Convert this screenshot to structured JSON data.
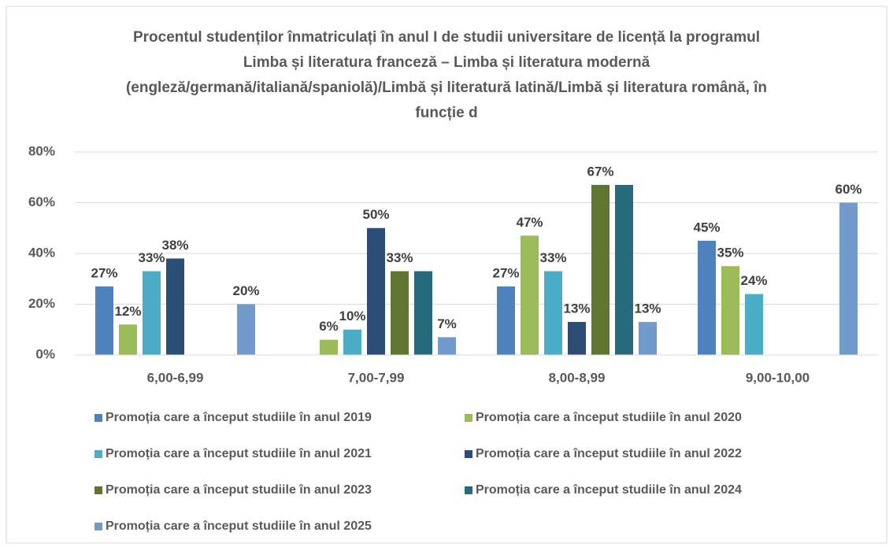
{
  "chart_data": {
    "type": "bar",
    "title": "Procentul studenților înmatriculați în anul I de studii universitare de licență la programul Limba și literatura franceză – Limba și literatura modernă (engleză/germană/italiană/spaniolă)/Limbă și literatură latină/Limbă și literatura română, în funcție d",
    "categories": [
      "6,00-6,99",
      "7,00-7,99",
      "8,00-8,99",
      "9,00-10,00"
    ],
    "series": [
      {
        "name": "Promoția care a început studiile în anul 2019",
        "color": "#4f81bd",
        "values": [
          27,
          null,
          27,
          45
        ],
        "value_labels": [
          "27%",
          null,
          "27%",
          "45%"
        ]
      },
      {
        "name": "Promoția care a început studiile în anul 2020",
        "color": "#9bbb59",
        "values": [
          12,
          6,
          47,
          35
        ],
        "value_labels": [
          "12%",
          "6%",
          "47%",
          "35%"
        ]
      },
      {
        "name": "Promoția care a început studiile în anul 2021",
        "color": "#4bacc6",
        "values": [
          33,
          10,
          33,
          24
        ],
        "value_labels": [
          "33%",
          "10%",
          "33%",
          "24%"
        ]
      },
      {
        "name": "Promoția care a început studiile în anul 2022",
        "color": "#2c4d75",
        "values": [
          38,
          50,
          13,
          null
        ],
        "value_labels": [
          "38%",
          "50%",
          "13%",
          null
        ]
      },
      {
        "name": "Promoția care a început studiile în anul 2023",
        "color": "#5f7530",
        "values": [
          null,
          33,
          67,
          null
        ],
        "value_labels": [
          null,
          "33%",
          "67%",
          null
        ]
      },
      {
        "name": "Promoția care a început studiile în anul 2024",
        "color": "#276a7c",
        "values": [
          null,
          33,
          67,
          null
        ],
        "value_labels": [
          null,
          null,
          null,
          null
        ]
      },
      {
        "name": "Promoția care a început studiile în anul 2025",
        "color": "#729aca",
        "values": [
          20,
          7,
          13,
          60
        ],
        "value_labels": [
          "20%",
          "7%",
          "13%",
          "60%"
        ]
      }
    ],
    "ylim": [
      0,
      80
    ],
    "yticks": [
      {
        "value": 0,
        "label": "0%"
      },
      {
        "value": 20,
        "label": "20%"
      },
      {
        "value": 40,
        "label": "40%"
      },
      {
        "value": 60,
        "label": "60%"
      },
      {
        "value": 80,
        "label": "80%"
      }
    ],
    "grid": true,
    "legend": "bottom"
  }
}
